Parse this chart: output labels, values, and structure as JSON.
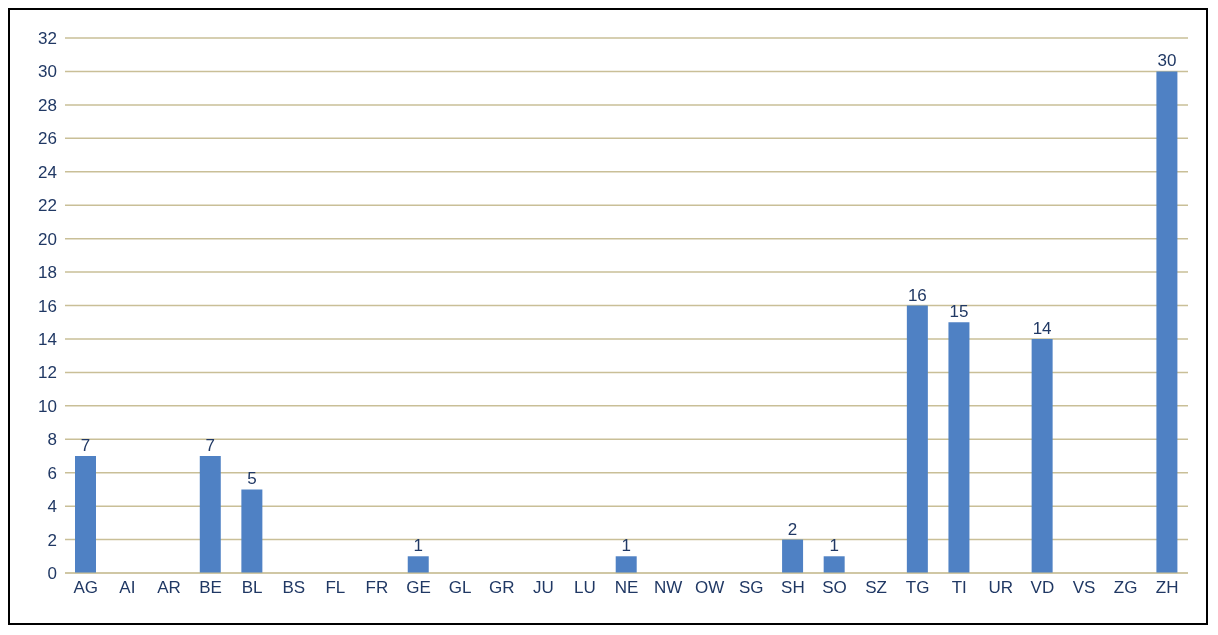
{
  "chart_data": {
    "type": "bar",
    "categories": [
      "AG",
      "AI",
      "AR",
      "BE",
      "BL",
      "BS",
      "FL",
      "FR",
      "GE",
      "GL",
      "GR",
      "JU",
      "LU",
      "NE",
      "NW",
      "OW",
      "SG",
      "SH",
      "SO",
      "SZ",
      "TG",
      "TI",
      "UR",
      "VD",
      "VS",
      "ZG",
      "ZH"
    ],
    "values": [
      7,
      0,
      0,
      7,
      5,
      0,
      0,
      0,
      1,
      0,
      0,
      0,
      0,
      1,
      0,
      0,
      0,
      2,
      1,
      0,
      16,
      15,
      0,
      14,
      0,
      0,
      30
    ],
    "value_labels": [
      "7",
      null,
      null,
      "7",
      "5",
      null,
      null,
      null,
      "1",
      null,
      null,
      null,
      null,
      "1",
      null,
      null,
      null,
      "2",
      "1",
      null,
      "16",
      "15",
      null,
      "14",
      null,
      null,
      "30"
    ],
    "color": "#4f81c4",
    "ylim": [
      0,
      32
    ],
    "yticks": [
      0,
      2,
      4,
      6,
      8,
      10,
      12,
      14,
      16,
      18,
      20,
      22,
      24,
      26,
      28,
      30,
      32
    ],
    "grid": "y",
    "legend": false
  }
}
